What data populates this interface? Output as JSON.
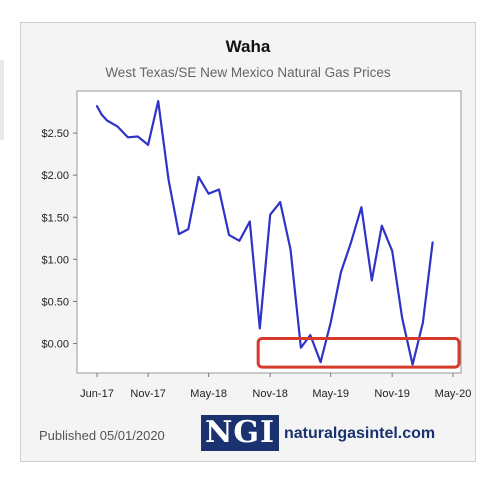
{
  "chart_data": {
    "type": "line",
    "title": "Waha",
    "subtitle": "West Texas/SE New Mexico Natural Gas Prices",
    "x_tick_labels": [
      "Jun-17",
      "Nov-17",
      "May-18",
      "Nov-18",
      "May-19",
      "Nov-19",
      "May-20"
    ],
    "y_tick_labels": [
      "$0.00",
      "$0.50",
      "$1.00",
      "$1.50",
      "$2.00",
      "$2.50"
    ],
    "y_ticks": [
      0,
      0.5,
      1.0,
      1.5,
      2.0,
      2.5
    ],
    "ylim": [
      -0.35,
      3.0
    ],
    "grid": false,
    "legend": "none",
    "series": [
      {
        "color": "#2f33c8",
        "x": [
          "2017-06-01",
          "2017-06-15",
          "2017-07-01",
          "2017-08-01",
          "2017-09-01",
          "2017-10-01",
          "2017-11-01",
          "2017-12-01",
          "2018-01-01",
          "2018-02-01",
          "2018-03-01",
          "2018-04-01",
          "2018-05-01",
          "2018-06-01",
          "2018-07-01",
          "2018-08-01",
          "2018-09-01",
          "2018-10-01",
          "2018-11-01",
          "2018-12-01",
          "2019-01-01",
          "2019-02-01",
          "2019-03-01",
          "2019-04-01",
          "2019-05-01",
          "2019-06-01",
          "2019-07-01",
          "2019-08-01",
          "2019-09-01",
          "2019-10-01",
          "2019-11-01",
          "2019-12-01",
          "2020-01-01",
          "2020-02-01",
          "2020-03-01",
          "2020-04-01",
          "2020-05-01"
        ],
        "y": [
          2.82,
          2.72,
          2.65,
          2.58,
          2.45,
          2.46,
          2.36,
          2.88,
          1.95,
          1.3,
          1.36,
          1.98,
          1.78,
          1.83,
          1.29,
          1.22,
          1.45,
          0.18,
          1.53,
          1.68,
          1.12,
          -0.05,
          0.1,
          -0.22,
          0.25,
          0.85,
          1.2,
          1.62,
          0.75,
          1.4,
          1.1,
          0.3,
          -0.25,
          0.25,
          1.2,
          null,
          null
        ]
      }
    ],
    "annotation": {
      "type": "highlight-box",
      "color": "#d63a2a",
      "x_from": "2018-12-01",
      "x_to": "2020-05-01",
      "y_from": -0.28,
      "y_to": 0.06
    }
  },
  "footer": {
    "published": "Published 05/01/2020",
    "logo_text": "NGI",
    "site": "naturalgasintel.com"
  }
}
